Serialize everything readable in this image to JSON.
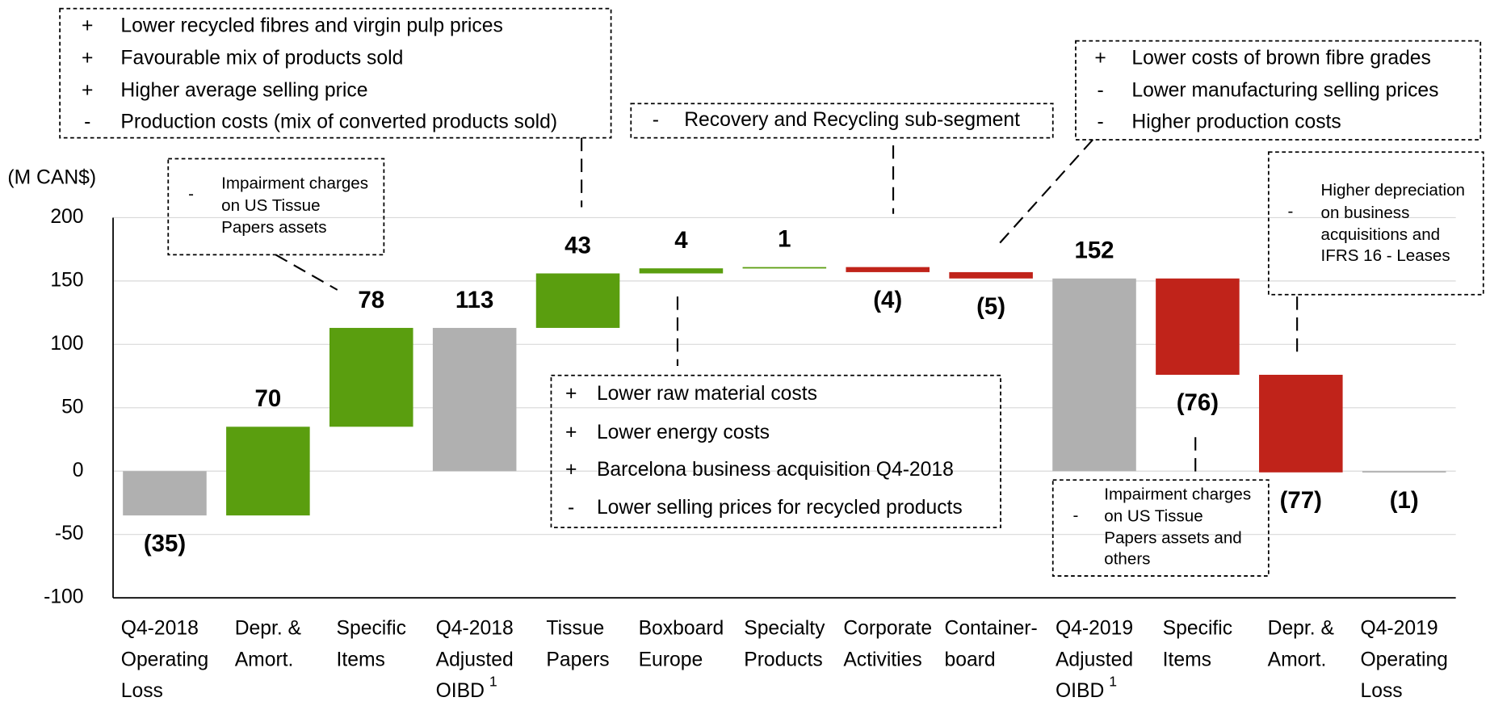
{
  "chart_data": {
    "type": "waterfall",
    "y_label": "(M CAN$)",
    "categories": [
      [
        "Q4-2018",
        "Operating",
        "Loss"
      ],
      [
        "Depr. &",
        "Amort."
      ],
      [
        "Specific",
        "Items"
      ],
      [
        "Q4-2018",
        "Adjusted",
        "OIBD"
      ],
      [
        "Tissue",
        "Papers"
      ],
      [
        "Boxboard",
        "Europe"
      ],
      [
        "Specialty",
        "Products"
      ],
      [
        "Corporate",
        "Activities"
      ],
      [
        "Container-",
        "board"
      ],
      [
        "Q4-2019",
        "Adjusted",
        "OIBD"
      ],
      [
        "Specific",
        "Items"
      ],
      [
        "Depr. &",
        "Amort."
      ],
      [
        "Q4-2019",
        "Operating",
        "Loss"
      ]
    ],
    "category_notes": [
      null,
      null,
      null,
      "1",
      null,
      null,
      null,
      null,
      null,
      "1",
      null,
      null,
      null
    ],
    "values": [
      -35,
      70,
      78,
      113,
      43,
      4,
      1,
      -4,
      -5,
      152,
      -76,
      -77,
      -1
    ],
    "value_labels": [
      "(35)",
      "70",
      "78",
      "113",
      "43",
      "4",
      "1",
      "(4)",
      "(5)",
      "152",
      "(76)",
      "(77)",
      "(1)"
    ],
    "totals": [
      true,
      false,
      false,
      true,
      false,
      false,
      false,
      false,
      false,
      true,
      false,
      false,
      true
    ],
    "colors": {
      "total": "#b0b0b0",
      "increase": "#5a9e0f",
      "decrease": "#c0231a"
    },
    "ylim": [
      -100,
      200
    ],
    "yticks": [
      -100,
      -50,
      0,
      50,
      100,
      150,
      200
    ],
    "grid": true,
    "annotations": [
      {
        "items": [
          {
            "sign": "+",
            "lines": [
              "Lower recycled fibres and virgin pulp prices"
            ]
          },
          {
            "sign": "+",
            "lines": [
              "Favourable mix of products sold"
            ]
          },
          {
            "sign": "+",
            "lines": [
              "Higher average selling price"
            ]
          },
          {
            "sign": "-",
            "lines": [
              "Production costs (mix of converted products sold)"
            ]
          }
        ]
      },
      {
        "items": [
          {
            "sign": "-",
            "lines": [
              "Recovery and Recycling sub-segment"
            ]
          }
        ]
      },
      {
        "items": [
          {
            "sign": "+",
            "lines": [
              "Lower costs of brown fibre grades"
            ]
          },
          {
            "sign": "-",
            "lines": [
              "Lower manufacturing selling prices"
            ]
          },
          {
            "sign": "-",
            "lines": [
              "Higher production costs"
            ]
          }
        ]
      },
      {
        "items": [
          {
            "sign": "-",
            "lines": [
              "Impairment charges",
              "on US Tissue",
              "Papers assets"
            ]
          }
        ]
      },
      {
        "items": [
          {
            "sign": "-",
            "lines": [
              "Higher depreciation",
              "on business",
              "acquisitions and",
              "IFRS 16 - Leases"
            ]
          }
        ]
      },
      {
        "items": [
          {
            "sign": "+",
            "lines": [
              "Lower raw material costs"
            ]
          },
          {
            "sign": "+",
            "lines": [
              "Lower energy costs"
            ]
          },
          {
            "sign": "+",
            "lines": [
              "Barcelona business acquisition Q4-2018"
            ]
          },
          {
            "sign": "-",
            "lines": [
              "Lower selling prices for recycled products"
            ]
          }
        ]
      },
      {
        "items": [
          {
            "sign": "-",
            "lines": [
              "Impairment charges",
              "on US Tissue",
              "Papers assets and",
              "others"
            ]
          }
        ]
      }
    ]
  }
}
